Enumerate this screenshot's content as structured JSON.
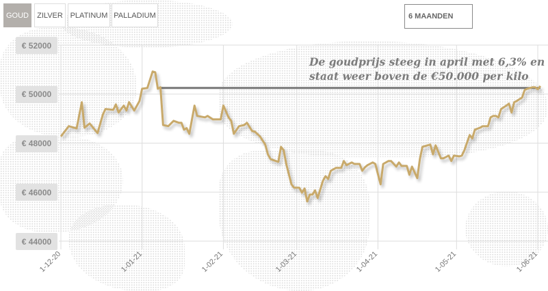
{
  "tabs": [
    {
      "label": "GOUD",
      "active": true
    },
    {
      "label": "ZILVER",
      "active": false
    },
    {
      "label": "PLATINUM",
      "active": false
    },
    {
      "label": "PALLADIUM",
      "active": false
    }
  ],
  "period_select": {
    "value": "6 MAANDEN"
  },
  "colors": {
    "line": "#c8a96a",
    "reference_line": "#777777",
    "active_tab": "#b3afab",
    "grid": "#dddddd"
  },
  "chart_data": {
    "type": "line",
    "title": "",
    "xlabel": "",
    "ylabel": "",
    "ylim": [
      44000,
      52000
    ],
    "xlim": [
      "2020-12-01",
      "2021-06-02"
    ],
    "grid": true,
    "yticks": [
      52000,
      50000,
      48000,
      46000,
      44000
    ],
    "ytick_labels": [
      "€ 52000",
      "€ 50000",
      "€ 48000",
      "€ 46000",
      "€ 44000"
    ],
    "xticks": [
      "2020-12-01",
      "2021-01-01",
      "2021-02-01",
      "2021-03-01",
      "2021-04-01",
      "2021-05-01",
      "2021-06-01"
    ],
    "xtick_labels": [
      "1-12-20",
      "1-01-21",
      "1-02-21",
      "1-03-21",
      "1-04-21",
      "1-05-21",
      "1-06-21"
    ],
    "annotation": {
      "lines": [
        "De goudprijs steeg in april met 6,3% en",
        "staat weer boven de €50.000 per kilo"
      ],
      "reference_value": 50250,
      "reference_from": "2021-01-08",
      "reference_to": "2021-06-02"
    },
    "series": [
      {
        "points": [
          [
            "2020-12-01",
            48270
          ],
          [
            "2020-12-04",
            48690
          ],
          [
            "2020-12-07",
            48600
          ],
          [
            "2020-12-09",
            49670
          ],
          [
            "2020-12-10",
            48630
          ],
          [
            "2020-12-12",
            48800
          ],
          [
            "2020-12-15",
            48410
          ],
          [
            "2020-12-17",
            49160
          ],
          [
            "2020-12-18",
            49390
          ],
          [
            "2020-12-21",
            49360
          ],
          [
            "2020-12-22",
            49580
          ],
          [
            "2020-12-23",
            49250
          ],
          [
            "2020-12-25",
            49530
          ],
          [
            "2020-12-26",
            49330
          ],
          [
            "2020-12-27",
            49670
          ],
          [
            "2020-12-29",
            49330
          ],
          [
            "2020-12-31",
            49720
          ],
          [
            "2021-01-01",
            50220
          ],
          [
            "2021-01-03",
            50250
          ],
          [
            "2021-01-05",
            50920
          ],
          [
            "2021-01-06",
            50890
          ],
          [
            "2021-01-07",
            50220
          ],
          [
            "2021-01-08",
            50280
          ],
          [
            "2021-01-09",
            48740
          ],
          [
            "2021-01-11",
            48690
          ],
          [
            "2021-01-13",
            48910
          ],
          [
            "2021-01-15",
            48830
          ],
          [
            "2021-01-16",
            48830
          ],
          [
            "2021-01-17",
            48550
          ],
          [
            "2021-01-18",
            48610
          ],
          [
            "2021-01-19",
            48380
          ],
          [
            "2021-01-21",
            49530
          ],
          [
            "2021-01-22",
            49110
          ],
          [
            "2021-01-25",
            49050
          ],
          [
            "2021-01-26",
            49110
          ],
          [
            "2021-01-28",
            48970
          ],
          [
            "2021-01-31",
            48970
          ],
          [
            "2021-02-01",
            49530
          ],
          [
            "2021-02-03",
            49050
          ],
          [
            "2021-02-04",
            48910
          ],
          [
            "2021-02-05",
            48380
          ],
          [
            "2021-02-07",
            48690
          ],
          [
            "2021-02-09",
            48740
          ],
          [
            "2021-02-10",
            48830
          ],
          [
            "2021-02-12",
            48490
          ],
          [
            "2021-02-13",
            48470
          ],
          [
            "2021-02-15",
            48270
          ],
          [
            "2021-02-17",
            47940
          ],
          [
            "2021-02-18",
            47540
          ],
          [
            "2021-02-19",
            47350
          ],
          [
            "2021-02-21",
            47270
          ],
          [
            "2021-02-22",
            47240
          ],
          [
            "2021-02-23",
            47850
          ],
          [
            "2021-02-24",
            47710
          ],
          [
            "2021-02-25",
            47150
          ],
          [
            "2021-02-27",
            46320
          ],
          [
            "2021-02-28",
            46180
          ],
          [
            "2021-03-02",
            46180
          ],
          [
            "2021-03-03",
            45980
          ],
          [
            "2021-03-04",
            46150
          ],
          [
            "2021-03-05",
            45620
          ],
          [
            "2021-03-06",
            45900
          ],
          [
            "2021-03-07",
            45900
          ],
          [
            "2021-03-08",
            46070
          ],
          [
            "2021-03-09",
            45760
          ],
          [
            "2021-03-11",
            46460
          ],
          [
            "2021-03-12",
            46650
          ],
          [
            "2021-03-13",
            46540
          ],
          [
            "2021-03-14",
            46870
          ],
          [
            "2021-03-16",
            46990
          ],
          [
            "2021-03-18",
            46990
          ],
          [
            "2021-03-19",
            47270
          ],
          [
            "2021-03-20",
            47100
          ],
          [
            "2021-03-22",
            47210
          ],
          [
            "2021-03-23",
            47150
          ],
          [
            "2021-03-25",
            47150
          ],
          [
            "2021-03-26",
            46870
          ],
          [
            "2021-03-27",
            47010
          ],
          [
            "2021-03-28",
            47100
          ],
          [
            "2021-03-30",
            47210
          ],
          [
            "2021-03-31",
            47150
          ],
          [
            "2021-04-02",
            46320
          ],
          [
            "2021-04-03",
            47150
          ],
          [
            "2021-04-05",
            47270
          ],
          [
            "2021-04-06",
            47270
          ],
          [
            "2021-04-08",
            47040
          ],
          [
            "2021-04-09",
            47210
          ],
          [
            "2021-04-10",
            47070
          ],
          [
            "2021-04-12",
            47070
          ],
          [
            "2021-04-13",
            46710
          ],
          [
            "2021-04-14",
            47040
          ],
          [
            "2021-04-16",
            46570
          ],
          [
            "2021-04-17",
            47350
          ],
          [
            "2021-04-18",
            47850
          ],
          [
            "2021-04-20",
            47910
          ],
          [
            "2021-04-21",
            47940
          ],
          [
            "2021-04-22",
            47540
          ],
          [
            "2021-04-23",
            47910
          ],
          [
            "2021-04-25",
            47380
          ],
          [
            "2021-04-26",
            47380
          ],
          [
            "2021-04-28",
            47490
          ],
          [
            "2021-04-29",
            47270
          ],
          [
            "2021-04-30",
            47490
          ],
          [
            "2021-05-02",
            47460
          ],
          [
            "2021-05-03",
            47490
          ],
          [
            "2021-05-04",
            47710
          ],
          [
            "2021-05-06",
            48330
          ],
          [
            "2021-05-07",
            48190
          ],
          [
            "2021-05-08",
            48550
          ],
          [
            "2021-05-10",
            48630
          ],
          [
            "2021-05-11",
            48690
          ],
          [
            "2021-05-13",
            48690
          ],
          [
            "2021-05-14",
            49050
          ],
          [
            "2021-05-15",
            49110
          ],
          [
            "2021-05-16",
            49110
          ],
          [
            "2021-05-17",
            49050
          ],
          [
            "2021-05-18",
            49390
          ],
          [
            "2021-05-20",
            49530
          ],
          [
            "2021-05-21",
            49610
          ],
          [
            "2021-05-22",
            49250
          ],
          [
            "2021-05-23",
            49670
          ],
          [
            "2021-05-24",
            49720
          ],
          [
            "2021-05-26",
            49860
          ],
          [
            "2021-05-27",
            50170
          ],
          [
            "2021-05-28",
            50220
          ],
          [
            "2021-05-30",
            50280
          ],
          [
            "2021-05-31",
            50280
          ],
          [
            "2021-06-01",
            50200
          ],
          [
            "2021-06-02",
            50330
          ]
        ]
      }
    ]
  }
}
